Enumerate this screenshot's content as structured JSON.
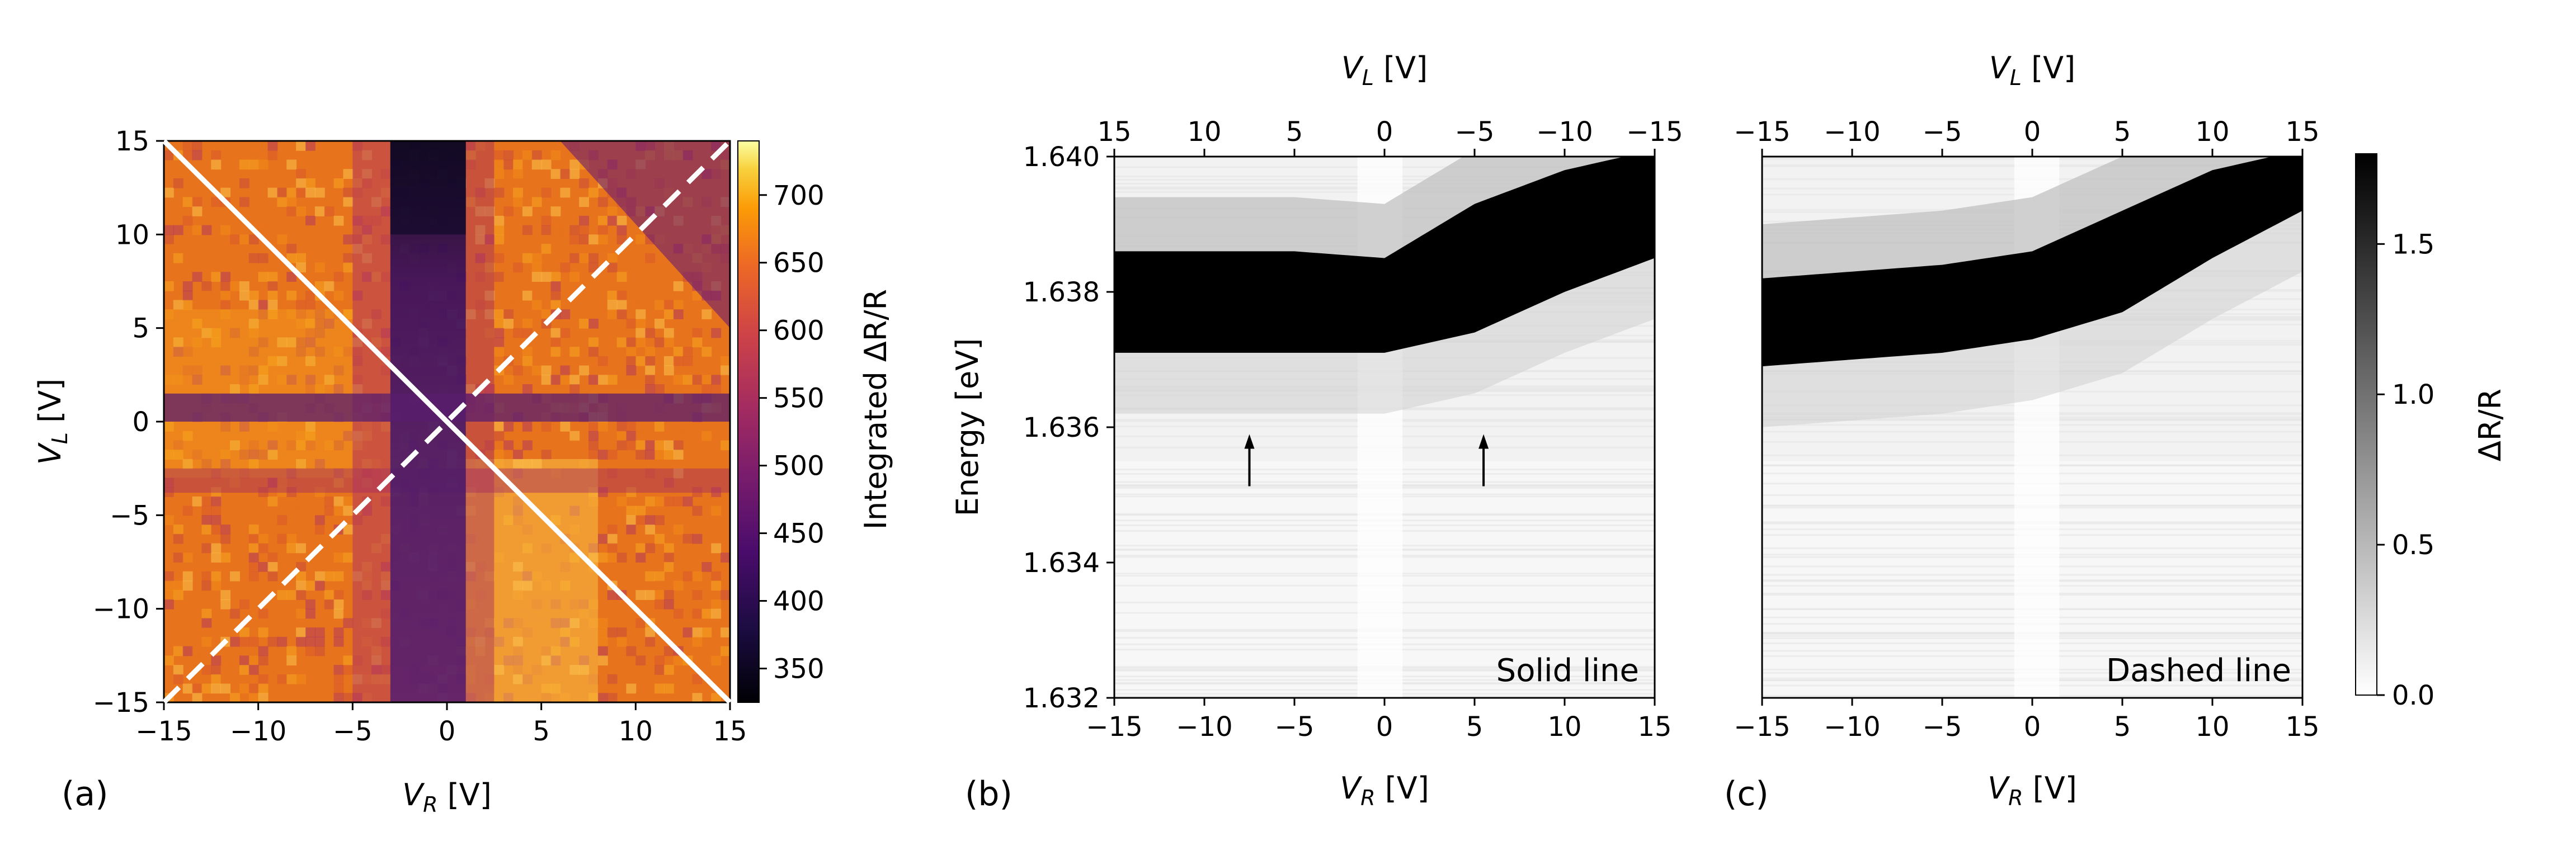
{
  "figure": {
    "panel_labels": [
      "(a)",
      "(b)",
      "(c)"
    ]
  },
  "colors": {
    "white_line": "#ffffff",
    "axes": "#000000",
    "inferno_dark": "#0b0724",
    "inferno_mid": "#5d1a6e",
    "inferno_orange": "#e8731d",
    "inferno_light": "#fbe58f"
  },
  "chart_data": [
    {
      "id": "a",
      "type": "heatmap",
      "title": "",
      "xlabel_main": "V",
      "xlabel_sub": "R",
      "xlabel_unit": " [V]",
      "ylabel_main": "V",
      "ylabel_sub": "L",
      "ylabel_unit": " [V]",
      "xlim": [
        -15,
        15
      ],
      "ylim": [
        -15,
        15
      ],
      "xticks": [
        -15,
        -10,
        -5,
        0,
        5,
        10,
        15
      ],
      "yticks": [
        -15,
        -10,
        -5,
        0,
        5,
        10,
        15
      ],
      "xtick_labels": [
        "−15",
        "−10",
        "−5",
        "0",
        "5",
        "10",
        "15"
      ],
      "ytick_labels": [
        "−15",
        "−10",
        "−5",
        "0",
        "5",
        "10",
        "15"
      ],
      "colormap": "inferno",
      "colorbar": {
        "label": "Integrated ΔR/R",
        "range": [
          325,
          740
        ],
        "ticks": [
          350,
          400,
          450,
          500,
          550,
          600,
          650,
          700
        ],
        "tick_labels": [
          "350",
          "400",
          "450",
          "500",
          "550",
          "600",
          "650",
          "700"
        ]
      },
      "features": {
        "dark_vertical_band_VR": [
          -3,
          1
        ],
        "dark_horizontal_band_VL": [
          0,
          1.5
        ],
        "minimum_value_region": {
          "VR": [
            -3,
            1
          ],
          "VL": [
            10,
            15
          ]
        }
      },
      "overlay_lines": [
        {
          "name": "Solid line",
          "style": "solid",
          "from": [
            -15,
            15
          ],
          "to": [
            15,
            -15
          ]
        },
        {
          "name": "Dashed line",
          "style": "dashed",
          "from": [
            -15,
            -15
          ],
          "to": [
            15,
            15
          ]
        }
      ]
    },
    {
      "id": "b",
      "type": "heatmap",
      "title": "",
      "xlabel_main": "V",
      "xlabel_sub": "R",
      "xlabel_unit": " [V]",
      "top_xlabel_main": "V",
      "top_xlabel_sub": "L",
      "top_xlabel_unit": " [V]",
      "ylabel": "Energy [eV]",
      "xlim": [
        -15,
        15
      ],
      "ylim": [
        1.632,
        1.64
      ],
      "xticks": [
        -15,
        -10,
        -5,
        0,
        5,
        10,
        15
      ],
      "xtick_labels": [
        "−15",
        "−10",
        "−5",
        "0",
        "5",
        "10",
        "15"
      ],
      "top_xtick_labels": [
        "15",
        "10",
        "5",
        "0",
        "−5",
        "−10",
        "−15"
      ],
      "yticks": [
        1.632,
        1.634,
        1.636,
        1.638,
        1.64
      ],
      "ytick_labels": [
        "1.632",
        "1.634",
        "1.636",
        "1.638",
        "1.640"
      ],
      "colormap": "gray_r",
      "annotation": "Solid line",
      "peak_upper_edge_eV": {
        "x": [
          -15,
          -5,
          0,
          5,
          10,
          15
        ],
        "y": [
          1.6386,
          1.6386,
          1.6385,
          1.6393,
          1.6398,
          1.6401
        ]
      },
      "peak_lower_edge_eV": {
        "x": [
          -15,
          -5,
          0,
          5,
          10,
          15
        ],
        "y": [
          1.6371,
          1.6371,
          1.6371,
          1.6374,
          1.638,
          1.6385
        ]
      },
      "arrows": [
        {
          "x": -7.5,
          "y": 1.6355
        },
        {
          "x": 5.5,
          "y": 1.6355
        }
      ]
    },
    {
      "id": "c",
      "type": "heatmap",
      "title": "",
      "xlabel_main": "V",
      "xlabel_sub": "R",
      "xlabel_unit": " [V]",
      "top_xlabel_main": "V",
      "top_xlabel_sub": "L",
      "top_xlabel_unit": " [V]",
      "xlim": [
        -15,
        15
      ],
      "ylim": [
        1.632,
        1.64
      ],
      "xticks": [
        -15,
        -10,
        -5,
        0,
        5,
        10,
        15
      ],
      "xtick_labels": [
        "−15",
        "−10",
        "−5",
        "0",
        "5",
        "10",
        "15"
      ],
      "top_xtick_labels": [
        "−15",
        "−10",
        "−5",
        "0",
        "5",
        "10",
        "15"
      ],
      "colormap": "gray_r",
      "annotation": "Dashed line",
      "peak_upper_edge_eV": {
        "x": [
          -15,
          -5,
          0,
          5,
          10,
          15
        ],
        "y": [
          1.6382,
          1.6384,
          1.6386,
          1.6392,
          1.6398,
          1.6401
        ]
      },
      "peak_lower_edge_eV": {
        "x": [
          -15,
          -5,
          0,
          5,
          10,
          15
        ],
        "y": [
          1.6369,
          1.6371,
          1.6373,
          1.6377,
          1.6385,
          1.6392
        ]
      },
      "colorbar": {
        "label": "ΔR/R",
        "range": [
          0,
          1.8
        ],
        "ticks": [
          0.0,
          0.5,
          1.0,
          1.5
        ],
        "tick_labels": [
          "0.0",
          "0.5",
          "1.0",
          "1.5"
        ]
      }
    }
  ]
}
